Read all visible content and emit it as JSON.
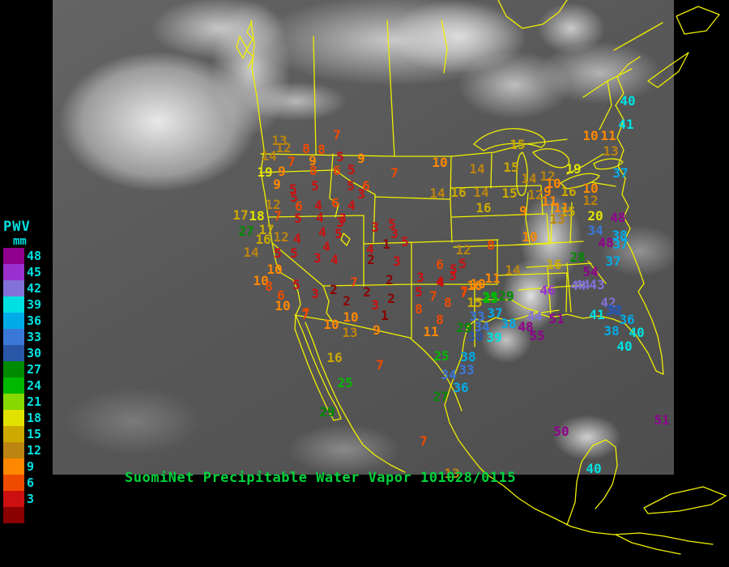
{
  "title": {
    "text": "SuomiNet Precipitable Water Vapor 101028/0115",
    "color": "#00d23c"
  },
  "legend": {
    "title": "PWV",
    "unit": "mm",
    "text_color": "#00e0e0",
    "bins": [
      {
        "min": 48,
        "label": "48",
        "color": "#90008e"
      },
      {
        "min": 45,
        "label": "45",
        "color": "#9a30d0"
      },
      {
        "min": 42,
        "label": "42",
        "color": "#8272d8"
      },
      {
        "min": 39,
        "label": "39",
        "color": "#00e0e0"
      },
      {
        "min": 36,
        "label": "36",
        "color": "#00ace8"
      },
      {
        "min": 33,
        "label": "33",
        "color": "#3a78d8"
      },
      {
        "min": 30,
        "label": "30",
        "color": "#2a56a8"
      },
      {
        "min": 27,
        "label": "27",
        "color": "#008a00"
      },
      {
        "min": 24,
        "label": "24",
        "color": "#00b800"
      },
      {
        "min": 21,
        "label": "21",
        "color": "#86d800"
      },
      {
        "min": 18,
        "label": "18",
        "color": "#e2e200"
      },
      {
        "min": 15,
        "label": "15",
        "color": "#ccaa00"
      },
      {
        "min": 12,
        "label": "12",
        "color": "#bc8410"
      },
      {
        "min": 9,
        "label": "9",
        "color": "#ff8800"
      },
      {
        "min": 6,
        "label": "6",
        "color": "#ee4a00"
      },
      {
        "min": 3,
        "label": "3",
        "color": "#cc1010"
      },
      {
        "min": 0,
        "label": "",
        "color": "#8b0000"
      }
    ]
  },
  "map": {
    "outline_color": "#f0f000",
    "background": "#000000"
  },
  "stations": [
    [
      13,
      345,
      174
    ],
    [
      12,
      350,
      183
    ],
    [
      14,
      332,
      193
    ],
    [
      19,
      327,
      213
    ],
    [
      9,
      348,
      212
    ],
    [
      7,
      360,
      200
    ],
    [
      8,
      378,
      184
    ],
    [
      8,
      397,
      185
    ],
    [
      9,
      386,
      199
    ],
    [
      8,
      387,
      211
    ],
    [
      5,
      420,
      194
    ],
    [
      9,
      446,
      196
    ],
    [
      6,
      416,
      211
    ],
    [
      5,
      434,
      210
    ],
    [
      7,
      416,
      167
    ],
    [
      7,
      487,
      214
    ],
    [
      10,
      543,
      201
    ],
    [
      14,
      540,
      239
    ],
    [
      9,
      342,
      228
    ],
    [
      5,
      362,
      234
    ],
    [
      5,
      363,
      244
    ],
    [
      12,
      337,
      253
    ],
    [
      6,
      369,
      255
    ],
    [
      5,
      389,
      230
    ],
    [
      4,
      393,
      254
    ],
    [
      6,
      414,
      251
    ],
    [
      4,
      434,
      254
    ],
    [
      5,
      433,
      230
    ],
    [
      6,
      452,
      230
    ],
    [
      3,
      446,
      240
    ],
    [
      17,
      297,
      266
    ],
    [
      18,
      317,
      267
    ],
    [
      7,
      343,
      267
    ],
    [
      5,
      368,
      270
    ],
    [
      4,
      395,
      269
    ],
    [
      3,
      423,
      270
    ],
    [
      27,
      304,
      286
    ],
    [
      17,
      329,
      284
    ],
    [
      16,
      325,
      296
    ],
    [
      12,
      347,
      293
    ],
    [
      14,
      310,
      312
    ],
    [
      5,
      343,
      313
    ],
    [
      5,
      363,
      313
    ],
    [
      4,
      367,
      295
    ],
    [
      4,
      398,
      287
    ],
    [
      5,
      418,
      289
    ],
    [
      3,
      420,
      275
    ],
    [
      4,
      403,
      305
    ],
    [
      3,
      392,
      319
    ],
    [
      4,
      413,
      321
    ],
    [
      10,
      339,
      333
    ],
    [
      10,
      322,
      347
    ],
    [
      8,
      332,
      354
    ],
    [
      5,
      366,
      352
    ],
    [
      6,
      347,
      365
    ],
    [
      3,
      389,
      363
    ],
    [
      2,
      412,
      358
    ],
    [
      7,
      437,
      349
    ],
    [
      2,
      453,
      361
    ],
    [
      2,
      428,
      372
    ],
    [
      3,
      463,
      377
    ],
    [
      2,
      483,
      369
    ],
    [
      10,
      349,
      378
    ],
    [
      7,
      378,
      387
    ],
    [
      10,
      433,
      392
    ],
    [
      2,
      481,
      346
    ],
    [
      3,
      463,
      281
    ],
    [
      5,
      484,
      277
    ],
    [
      3,
      487,
      289
    ],
    [
      4,
      457,
      308
    ],
    [
      1,
      477,
      302
    ],
    [
      5,
      500,
      299
    ],
    [
      2,
      458,
      321
    ],
    [
      3,
      490,
      323
    ],
    [
      12,
      572,
      309
    ],
    [
      8,
      606,
      303
    ],
    [
      6,
      543,
      327
    ],
    [
      5,
      571,
      326
    ],
    [
      3,
      559,
      341
    ],
    [
      4,
      544,
      349
    ],
    [
      3,
      519,
      343
    ],
    [
      5,
      517,
      361
    ],
    [
      7,
      535,
      366
    ],
    [
      8,
      517,
      382
    ],
    [
      8,
      553,
      374
    ],
    [
      10,
      590,
      351
    ],
    [
      7,
      573,
      360
    ],
    [
      15,
      586,
      374
    ],
    [
      25,
      606,
      369
    ],
    [
      1,
      475,
      390
    ],
    [
      9,
      465,
      408
    ],
    [
      13,
      432,
      411
    ],
    [
      10,
      409,
      401
    ],
    [
      7,
      377,
      389
    ],
    [
      8,
      543,
      395
    ],
    [
      11,
      532,
      410
    ],
    [
      15,
      639,
      179
    ],
    [
      14,
      589,
      209
    ],
    [
      15,
      631,
      207
    ],
    [
      14,
      653,
      221
    ],
    [
      12,
      676,
      218
    ],
    [
      10,
      683,
      227
    ],
    [
      9,
      676,
      237
    ],
    [
      16,
      566,
      238
    ],
    [
      14,
      594,
      238
    ],
    [
      15,
      629,
      239
    ],
    [
      12,
      661,
      241
    ],
    [
      11,
      678,
      249
    ],
    [
      16,
      597,
      257
    ],
    [
      9,
      646,
      261
    ],
    [
      11,
      693,
      257
    ],
    [
      40,
      775,
      125
    ],
    [
      41,
      773,
      154
    ],
    [
      10,
      729,
      168
    ],
    [
      11,
      751,
      168
    ],
    [
      13,
      754,
      187
    ],
    [
      37,
      766,
      214
    ],
    [
      19,
      708,
      209
    ],
    [
      16,
      702,
      237
    ],
    [
      10,
      729,
      233
    ],
    [
      12,
      729,
      248
    ],
    [
      15,
      701,
      262
    ],
    [
      20,
      735,
      267
    ],
    [
      48,
      763,
      269
    ],
    [
      34,
      735,
      285
    ],
    [
      48,
      748,
      300
    ],
    [
      38,
      765,
      291
    ],
    [
      37,
      766,
      302
    ],
    [
      13,
      688,
      271
    ],
    [
      10,
      654,
      293
    ],
    [
      37,
      757,
      323
    ],
    [
      28,
      713,
      318
    ],
    [
      16,
      684,
      327
    ],
    [
      54,
      729,
      336
    ],
    [
      44,
      719,
      352
    ],
    [
      43,
      737,
      352
    ],
    [
      46,
      676,
      359
    ],
    [
      42,
      751,
      374
    ],
    [
      30,
      757,
      384
    ],
    [
      41,
      737,
      389
    ],
    [
      36,
      774,
      395
    ],
    [
      44,
      714,
      353
    ],
    [
      25,
      605,
      367
    ],
    [
      29,
      625,
      366
    ],
    [
      44,
      660,
      391
    ],
    [
      51,
      687,
      394
    ],
    [
      48,
      649,
      404
    ],
    [
      55,
      663,
      415
    ],
    [
      38,
      628,
      400
    ],
    [
      39,
      610,
      417
    ],
    [
      33,
      589,
      391
    ],
    [
      37,
      611,
      387
    ],
    [
      34,
      595,
      404
    ],
    [
      29,
      573,
      405
    ],
    [
      30,
      587,
      416
    ],
    [
      14,
      633,
      334
    ],
    [
      11,
      608,
      344
    ],
    [
      10,
      586,
      353
    ],
    [
      7,
      573,
      362
    ],
    [
      4,
      543,
      348
    ],
    [
      5,
      560,
      333
    ],
    [
      32,
      759,
      383
    ],
    [
      38,
      755,
      409
    ],
    [
      40,
      786,
      411
    ],
    [
      40,
      771,
      428
    ],
    [
      25,
      545,
      440
    ],
    [
      38,
      578,
      441
    ],
    [
      33,
      576,
      457
    ],
    [
      34,
      554,
      463
    ],
    [
      36,
      569,
      479
    ],
    [
      27,
      544,
      490
    ],
    [
      7,
      523,
      545
    ],
    [
      16,
      413,
      442
    ],
    [
      7,
      469,
      451
    ],
    [
      25,
      426,
      473
    ],
    [
      29,
      404,
      509
    ],
    [
      50,
      693,
      533
    ],
    [
      51,
      817,
      519
    ],
    [
      40,
      733,
      579
    ],
    [
      13,
      558,
      585
    ]
  ]
}
